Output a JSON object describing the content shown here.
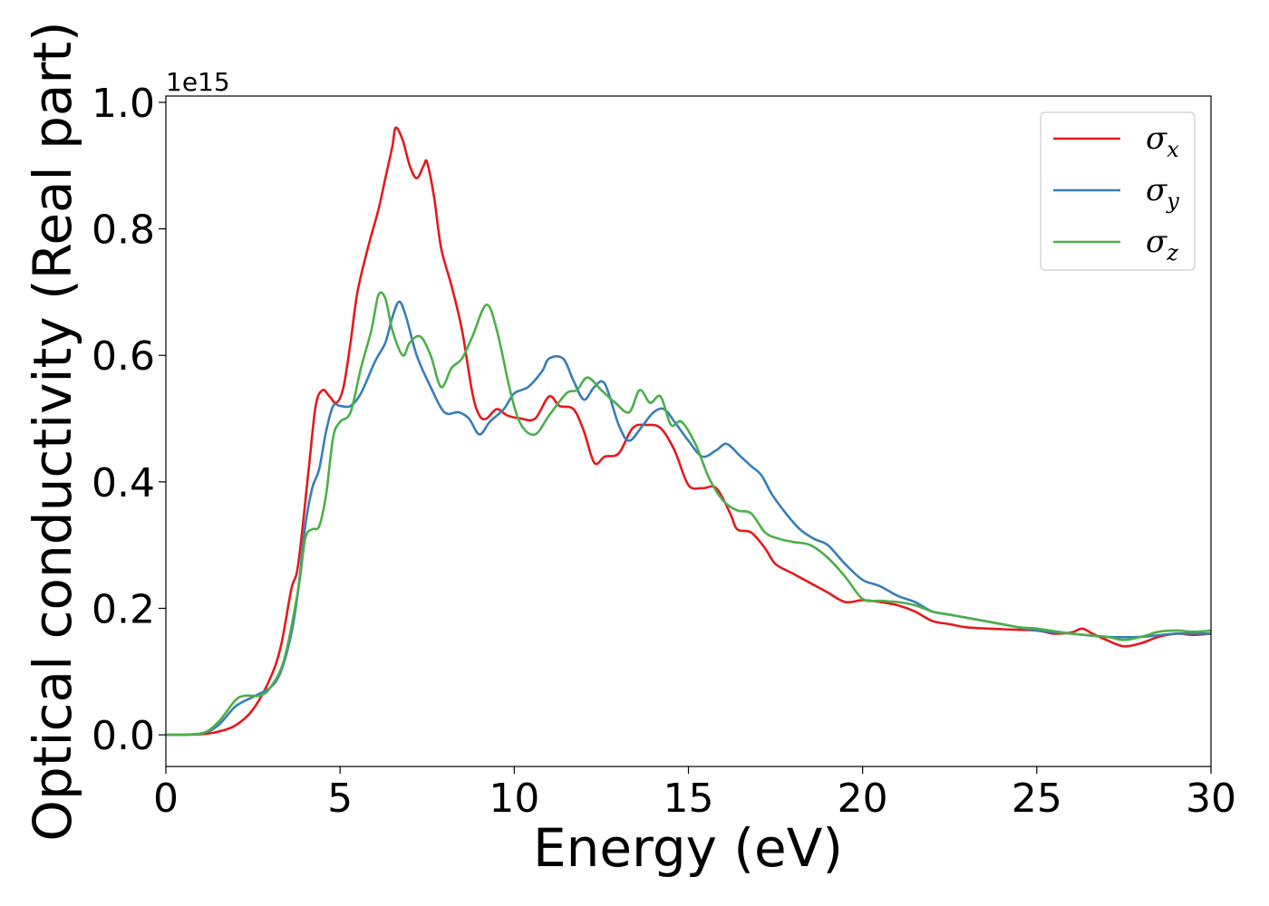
{
  "chart_data": {
    "type": "line",
    "title": "",
    "xlabel": "Energy (eV)",
    "ylabel": "Optical conductivity (Real part)",
    "y_exponent_label": "1e15",
    "xlim": [
      0,
      30
    ],
    "ylim": [
      -0.05,
      1.01
    ],
    "xticks": [
      0,
      5,
      10,
      15,
      20,
      25,
      30
    ],
    "xtick_labels": [
      "0",
      "5",
      "10",
      "15",
      "20",
      "25",
      "30"
    ],
    "yticks": [
      0.0,
      0.2,
      0.4,
      0.6,
      0.8,
      1.0
    ],
    "ytick_labels": [
      "0.0",
      "0.2",
      "0.4",
      "0.6",
      "0.8",
      "1.0"
    ],
    "grid": false,
    "legend_position": "top-right",
    "series": [
      {
        "name": "σx",
        "legend_symbol": "σ",
        "legend_subscript": "x",
        "color": "#e41a1c",
        "points": [
          [
            0,
            0
          ],
          [
            1,
            0.001
          ],
          [
            1.5,
            0.005
          ],
          [
            2,
            0.015
          ],
          [
            2.5,
            0.04
          ],
          [
            3,
            0.09
          ],
          [
            3.3,
            0.14
          ],
          [
            3.6,
            0.23
          ],
          [
            3.8,
            0.27
          ],
          [
            4.1,
            0.42
          ],
          [
            4.3,
            0.52
          ],
          [
            4.5,
            0.545
          ],
          [
            4.7,
            0.535
          ],
          [
            4.9,
            0.525
          ],
          [
            5.1,
            0.55
          ],
          [
            5.3,
            0.62
          ],
          [
            5.5,
            0.7
          ],
          [
            5.8,
            0.77
          ],
          [
            6.1,
            0.83
          ],
          [
            6.3,
            0.88
          ],
          [
            6.5,
            0.93
          ],
          [
            6.6,
            0.96
          ],
          [
            6.8,
            0.94
          ],
          [
            7.0,
            0.9
          ],
          [
            7.2,
            0.88
          ],
          [
            7.4,
            0.9
          ],
          [
            7.5,
            0.905
          ],
          [
            7.7,
            0.85
          ],
          [
            7.9,
            0.77
          ],
          [
            8.2,
            0.71
          ],
          [
            8.5,
            0.64
          ],
          [
            8.8,
            0.54
          ],
          [
            9.0,
            0.505
          ],
          [
            9.2,
            0.5
          ],
          [
            9.5,
            0.515
          ],
          [
            9.8,
            0.505
          ],
          [
            10.2,
            0.5
          ],
          [
            10.6,
            0.5
          ],
          [
            11.0,
            0.535
          ],
          [
            11.3,
            0.52
          ],
          [
            11.7,
            0.515
          ],
          [
            12.0,
            0.48
          ],
          [
            12.3,
            0.43
          ],
          [
            12.6,
            0.44
          ],
          [
            13.0,
            0.445
          ],
          [
            13.4,
            0.485
          ],
          [
            13.8,
            0.49
          ],
          [
            14.2,
            0.485
          ],
          [
            14.6,
            0.45
          ],
          [
            15.0,
            0.395
          ],
          [
            15.4,
            0.39
          ],
          [
            15.8,
            0.39
          ],
          [
            16.2,
            0.35
          ],
          [
            16.4,
            0.325
          ],
          [
            16.8,
            0.32
          ],
          [
            17.2,
            0.295
          ],
          [
            17.5,
            0.27
          ],
          [
            18.0,
            0.255
          ],
          [
            18.5,
            0.24
          ],
          [
            19.0,
            0.225
          ],
          [
            19.5,
            0.21
          ],
          [
            20.0,
            0.213
          ],
          [
            20.5,
            0.21
          ],
          [
            21.0,
            0.205
          ],
          [
            21.5,
            0.195
          ],
          [
            22.0,
            0.18
          ],
          [
            22.5,
            0.175
          ],
          [
            23.0,
            0.17
          ],
          [
            24.0,
            0.167
          ],
          [
            25.0,
            0.165
          ],
          [
            25.5,
            0.16
          ],
          [
            26.0,
            0.162
          ],
          [
            26.3,
            0.168
          ],
          [
            26.6,
            0.16
          ],
          [
            27.0,
            0.15
          ],
          [
            27.5,
            0.14
          ],
          [
            28.0,
            0.145
          ],
          [
            28.5,
            0.155
          ],
          [
            29.0,
            0.16
          ],
          [
            29.5,
            0.158
          ],
          [
            30.0,
            0.16
          ]
        ]
      },
      {
        "name": "σy",
        "legend_symbol": "σ",
        "legend_subscript": "y",
        "color": "#377eb8",
        "points": [
          [
            0,
            0
          ],
          [
            1,
            0.002
          ],
          [
            1.5,
            0.015
          ],
          [
            2,
            0.045
          ],
          [
            2.5,
            0.06
          ],
          [
            3,
            0.075
          ],
          [
            3.3,
            0.1
          ],
          [
            3.6,
            0.16
          ],
          [
            3.8,
            0.23
          ],
          [
            4.0,
            0.33
          ],
          [
            4.2,
            0.39
          ],
          [
            4.4,
            0.42
          ],
          [
            4.6,
            0.48
          ],
          [
            4.8,
            0.52
          ],
          [
            5.0,
            0.52
          ],
          [
            5.3,
            0.52
          ],
          [
            5.6,
            0.54
          ],
          [
            6.0,
            0.59
          ],
          [
            6.3,
            0.62
          ],
          [
            6.5,
            0.66
          ],
          [
            6.7,
            0.685
          ],
          [
            6.9,
            0.66
          ],
          [
            7.2,
            0.6
          ],
          [
            7.6,
            0.55
          ],
          [
            8.0,
            0.51
          ],
          [
            8.4,
            0.51
          ],
          [
            8.7,
            0.5
          ],
          [
            9.0,
            0.475
          ],
          [
            9.3,
            0.495
          ],
          [
            9.7,
            0.515
          ],
          [
            10.0,
            0.54
          ],
          [
            10.4,
            0.55
          ],
          [
            10.8,
            0.575
          ],
          [
            11.0,
            0.595
          ],
          [
            11.4,
            0.595
          ],
          [
            11.7,
            0.56
          ],
          [
            12.0,
            0.53
          ],
          [
            12.3,
            0.55
          ],
          [
            12.6,
            0.555
          ],
          [
            13.0,
            0.49
          ],
          [
            13.3,
            0.465
          ],
          [
            13.7,
            0.49
          ],
          [
            14.0,
            0.51
          ],
          [
            14.3,
            0.515
          ],
          [
            14.6,
            0.495
          ],
          [
            15.0,
            0.465
          ],
          [
            15.4,
            0.44
          ],
          [
            15.8,
            0.45
          ],
          [
            16.1,
            0.46
          ],
          [
            16.5,
            0.44
          ],
          [
            16.8,
            0.425
          ],
          [
            17.1,
            0.41
          ],
          [
            17.4,
            0.38
          ],
          [
            17.8,
            0.35
          ],
          [
            18.2,
            0.325
          ],
          [
            18.6,
            0.31
          ],
          [
            19.0,
            0.3
          ],
          [
            19.5,
            0.27
          ],
          [
            20.0,
            0.245
          ],
          [
            20.5,
            0.235
          ],
          [
            21.0,
            0.22
          ],
          [
            21.5,
            0.21
          ],
          [
            22.0,
            0.195
          ],
          [
            22.5,
            0.19
          ],
          [
            23.0,
            0.185
          ],
          [
            24.0,
            0.175
          ],
          [
            25.0,
            0.165
          ],
          [
            26.0,
            0.16
          ],
          [
            27.0,
            0.155
          ],
          [
            28.0,
            0.155
          ],
          [
            29.0,
            0.16
          ],
          [
            30.0,
            0.16
          ]
        ]
      },
      {
        "name": "σz",
        "legend_symbol": "σ",
        "legend_subscript": "z",
        "color": "#4daf4a",
        "points": [
          [
            0,
            0
          ],
          [
            1,
            0.002
          ],
          [
            1.5,
            0.02
          ],
          [
            2,
            0.055
          ],
          [
            2.3,
            0.062
          ],
          [
            2.7,
            0.062
          ],
          [
            3.0,
            0.075
          ],
          [
            3.4,
            0.12
          ],
          [
            3.8,
            0.23
          ],
          [
            4.0,
            0.31
          ],
          [
            4.2,
            0.325
          ],
          [
            4.4,
            0.33
          ],
          [
            4.6,
            0.38
          ],
          [
            4.8,
            0.47
          ],
          [
            5.0,
            0.495
          ],
          [
            5.3,
            0.51
          ],
          [
            5.6,
            0.58
          ],
          [
            5.9,
            0.64
          ],
          [
            6.1,
            0.695
          ],
          [
            6.3,
            0.69
          ],
          [
            6.5,
            0.64
          ],
          [
            6.8,
            0.6
          ],
          [
            7.0,
            0.62
          ],
          [
            7.3,
            0.63
          ],
          [
            7.6,
            0.6
          ],
          [
            7.9,
            0.55
          ],
          [
            8.2,
            0.58
          ],
          [
            8.5,
            0.595
          ],
          [
            8.8,
            0.63
          ],
          [
            9.2,
            0.68
          ],
          [
            9.5,
            0.64
          ],
          [
            9.9,
            0.54
          ],
          [
            10.2,
            0.49
          ],
          [
            10.6,
            0.475
          ],
          [
            11.0,
            0.505
          ],
          [
            11.5,
            0.54
          ],
          [
            11.8,
            0.545
          ],
          [
            12.1,
            0.565
          ],
          [
            12.5,
            0.545
          ],
          [
            12.9,
            0.525
          ],
          [
            13.3,
            0.51
          ],
          [
            13.6,
            0.545
          ],
          [
            13.9,
            0.525
          ],
          [
            14.2,
            0.535
          ],
          [
            14.5,
            0.49
          ],
          [
            14.8,
            0.495
          ],
          [
            15.2,
            0.46
          ],
          [
            15.6,
            0.405
          ],
          [
            16.0,
            0.37
          ],
          [
            16.4,
            0.355
          ],
          [
            16.8,
            0.35
          ],
          [
            17.2,
            0.32
          ],
          [
            17.6,
            0.31
          ],
          [
            18.0,
            0.305
          ],
          [
            18.5,
            0.3
          ],
          [
            19.0,
            0.28
          ],
          [
            19.5,
            0.25
          ],
          [
            20.0,
            0.215
          ],
          [
            20.5,
            0.212
          ],
          [
            21.0,
            0.21
          ],
          [
            21.5,
            0.205
          ],
          [
            22.0,
            0.195
          ],
          [
            22.5,
            0.19
          ],
          [
            23.0,
            0.185
          ],
          [
            23.5,
            0.18
          ],
          [
            24.0,
            0.175
          ],
          [
            24.5,
            0.17
          ],
          [
            25.0,
            0.168
          ],
          [
            26.0,
            0.16
          ],
          [
            27.0,
            0.155
          ],
          [
            27.5,
            0.15
          ],
          [
            28.0,
            0.155
          ],
          [
            28.5,
            0.163
          ],
          [
            29.0,
            0.165
          ],
          [
            29.5,
            0.163
          ],
          [
            30.0,
            0.165
          ]
        ]
      }
    ]
  }
}
